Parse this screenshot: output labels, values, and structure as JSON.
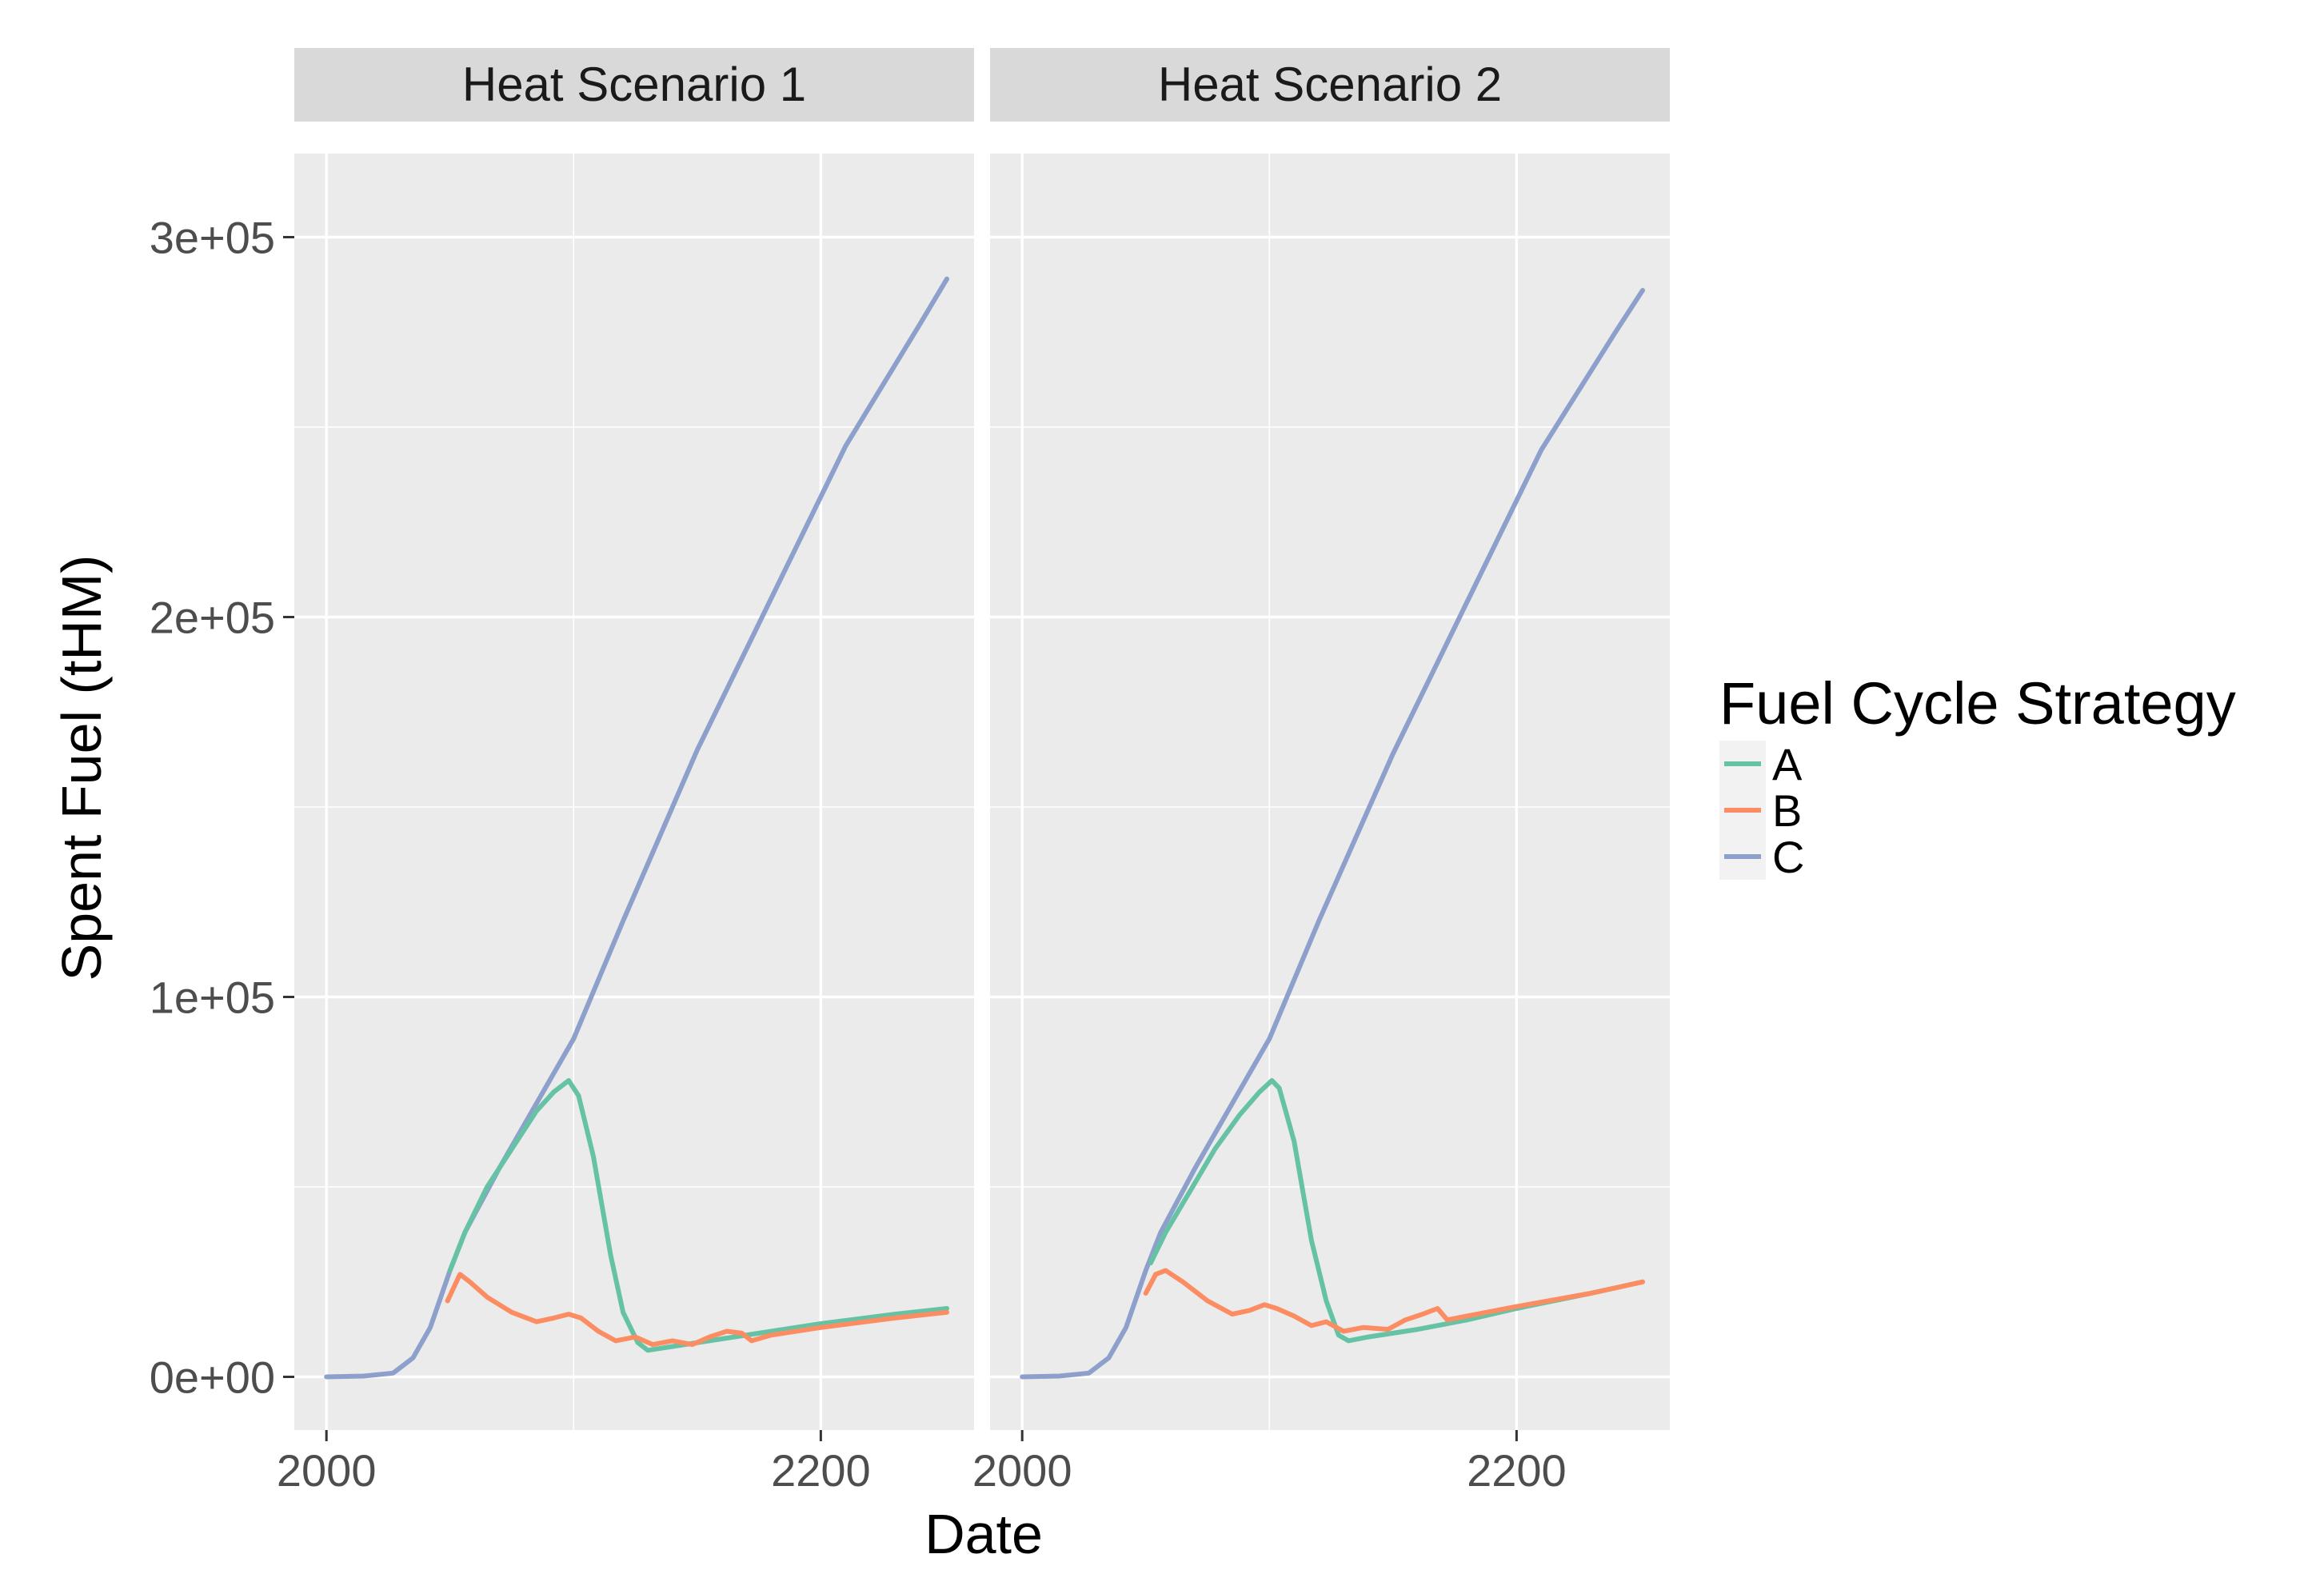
{
  "chart_data": {
    "type": "line",
    "xlabel": "Date",
    "ylabel": "Spent Fuel (tHM)",
    "xlim": [
      1987,
      2262
    ],
    "ylim": [
      -14000,
      322000
    ],
    "x_ticks": [
      2000,
      2200
    ],
    "x_tick_labels": [
      "2000",
      "2200"
    ],
    "y_ticks": [
      0,
      100000,
      200000,
      300000
    ],
    "y_tick_labels": [
      "0e+00",
      "1e+05",
      "2e+05",
      "3e+05"
    ],
    "y_minor_ticks": [
      50000,
      150000,
      250000
    ],
    "x_minor_ticks": [
      2100
    ],
    "grid": true,
    "legend": {
      "title": "Fuel Cycle Strategy",
      "placement": "right",
      "entries": [
        {
          "label": "A",
          "color": "#66c2a5"
        },
        {
          "label": "B",
          "color": "#fc8d62"
        },
        {
          "label": "C",
          "color": "#8da0cb"
        }
      ]
    },
    "panels": [
      {
        "title": "Heat Scenario 1",
        "series": [
          {
            "key": "C",
            "color": "#8da0cb",
            "x": [
              2000,
              2015,
              2027,
              2035,
              2042,
              2050,
              2056,
              2070,
              2085,
              2100,
              2120,
              2150,
              2180,
              2210,
              2240,
              2251
            ],
            "y": [
              0,
              200,
              1000,
              5000,
              13000,
              28000,
              38000,
              55000,
              72000,
              89000,
              120000,
              165000,
              205000,
              245000,
              277000,
              289000
            ]
          },
          {
            "key": "A",
            "color": "#66c2a5",
            "x": [
              2050,
              2056,
              2065,
              2075,
              2085,
              2092,
              2098,
              2102,
              2108,
              2115,
              2120,
              2126,
              2130,
              2140,
              2160,
              2180,
              2200,
              2230,
              2251
            ],
            "y": [
              28000,
              38000,
              50000,
              60000,
              70000,
              75000,
              78000,
              74000,
              58000,
              32000,
              17000,
              9000,
              7000,
              8000,
              10000,
              12000,
              14000,
              16500,
              18000
            ]
          },
          {
            "key": "B",
            "color": "#fc8d62",
            "x": [
              2049,
              2054,
              2058,
              2065,
              2075,
              2085,
              2092,
              2098,
              2103,
              2110,
              2117,
              2125,
              2132,
              2140,
              2148,
              2155,
              2162,
              2168,
              2172,
              2180,
              2200,
              2230,
              2251
            ],
            "y": [
              20000,
              27000,
              25000,
              21000,
              17000,
              14500,
              15500,
              16500,
              15500,
              12000,
              9500,
              10500,
              8500,
              9500,
              8500,
              10500,
              12000,
              11500,
              9500,
              11000,
              13000,
              15500,
              17000
            ]
          }
        ]
      },
      {
        "title": "Heat Scenario 2",
        "series": [
          {
            "key": "C",
            "color": "#8da0cb",
            "x": [
              2000,
              2015,
              2027,
              2035,
              2042,
              2050,
              2056,
              2070,
              2085,
              2100,
              2120,
              2150,
              2180,
              2210,
              2240,
              2251
            ],
            "y": [
              0,
              200,
              1000,
              5000,
              13000,
              28000,
              38000,
              55000,
              72000,
              89000,
              120000,
              164000,
              204000,
              244000,
              275000,
              286000
            ]
          },
          {
            "key": "A",
            "color": "#66c2a5",
            "x": [
              2052,
              2058,
              2068,
              2078,
              2088,
              2096,
              2101,
              2104,
              2110,
              2117,
              2123,
              2128,
              2132,
              2140,
              2160,
              2180,
              2200,
              2230,
              2251
            ],
            "y": [
              30000,
              38000,
              49000,
              60000,
              69000,
              75000,
              78000,
              76000,
              62000,
              36000,
              20000,
              11000,
              9500,
              10500,
              12500,
              15000,
              18000,
              22000,
              25000
            ]
          },
          {
            "key": "B",
            "color": "#fc8d62",
            "x": [
              2050,
              2054,
              2058,
              2065,
              2075,
              2085,
              2092,
              2098,
              2103,
              2110,
              2117,
              2123,
              2130,
              2138,
              2148,
              2155,
              2162,
              2168,
              2172,
              2180,
              2200,
              2230,
              2251
            ],
            "y": [
              22000,
              27000,
              28000,
              25000,
              20000,
              16500,
              17500,
              19000,
              18000,
              16000,
              13500,
              14500,
              12000,
              13000,
              12500,
              15000,
              16500,
              18000,
              15000,
              16000,
              18500,
              22000,
              25000
            ]
          }
        ]
      }
    ]
  }
}
